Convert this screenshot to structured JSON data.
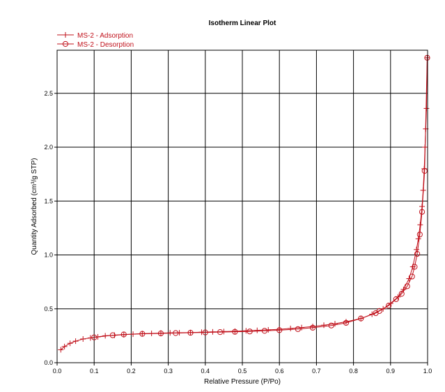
{
  "chart_data": {
    "type": "scatter",
    "title": "Isotherm Linear Plot",
    "xlabel": "Relative Pressure (P/Po)",
    "ylabel": "Quantity Adsorbed (cm³/g STP)",
    "xlim": [
      0.0,
      1.0
    ],
    "ylim": [
      0.0,
      2.9
    ],
    "x_ticks": [
      0.0,
      0.1,
      0.2,
      0.3,
      0.4,
      0.5,
      0.6,
      0.7,
      0.8,
      0.9,
      1.0
    ],
    "x_tick_labels": [
      "0.0",
      "0.1",
      "0.2",
      "0.3",
      "0.4",
      "0.5",
      "0.6",
      "0.7",
      "0.8",
      "0.9",
      "1.0"
    ],
    "y_ticks": [
      0.0,
      0.5,
      1.0,
      1.5,
      2.0,
      2.5
    ],
    "y_tick_labels": [
      "0.0",
      "0.5",
      "1.0",
      "1.5",
      "2.0",
      "2.5"
    ],
    "grid": true,
    "legend_position": "top-left",
    "colors": {
      "series": "#c0101a"
    },
    "series": [
      {
        "name": "MS-2 - Adsorption",
        "marker": "plus",
        "points": [
          [
            0.01,
            0.12
          ],
          [
            0.02,
            0.15
          ],
          [
            0.035,
            0.18
          ],
          [
            0.05,
            0.2
          ],
          [
            0.07,
            0.22
          ],
          [
            0.09,
            0.23
          ],
          [
            0.11,
            0.24
          ],
          [
            0.13,
            0.25
          ],
          [
            0.155,
            0.255
          ],
          [
            0.18,
            0.26
          ],
          [
            0.205,
            0.265
          ],
          [
            0.23,
            0.27
          ],
          [
            0.255,
            0.272
          ],
          [
            0.28,
            0.275
          ],
          [
            0.305,
            0.277
          ],
          [
            0.33,
            0.278
          ],
          [
            0.36,
            0.28
          ],
          [
            0.39,
            0.283
          ],
          [
            0.42,
            0.286
          ],
          [
            0.45,
            0.289
          ],
          [
            0.48,
            0.292
          ],
          [
            0.51,
            0.296
          ],
          [
            0.54,
            0.3
          ],
          [
            0.57,
            0.305
          ],
          [
            0.6,
            0.31
          ],
          [
            0.63,
            0.318
          ],
          [
            0.66,
            0.326
          ],
          [
            0.69,
            0.336
          ],
          [
            0.72,
            0.348
          ],
          [
            0.75,
            0.362
          ],
          [
            0.78,
            0.38
          ],
          [
            0.82,
            0.41
          ],
          [
            0.85,
            0.45
          ],
          [
            0.88,
            0.5
          ],
          [
            0.9,
            0.55
          ],
          [
            0.92,
            0.61
          ],
          [
            0.935,
            0.68
          ],
          [
            0.95,
            0.78
          ],
          [
            0.96,
            0.89
          ],
          [
            0.97,
            1.05
          ],
          [
            0.975,
            1.15
          ],
          [
            0.98,
            1.28
          ],
          [
            0.985,
            1.45
          ],
          [
            0.988,
            1.6
          ],
          [
            0.991,
            1.8
          ],
          [
            0.993,
            2.0
          ],
          [
            0.995,
            2.17
          ],
          [
            0.997,
            2.36
          ],
          [
            0.999,
            2.83
          ]
        ]
      },
      {
        "name": "MS-2 - Desorption",
        "marker": "circle",
        "points": [
          [
            0.999,
            2.83
          ],
          [
            0.992,
            1.78
          ],
          [
            0.985,
            1.4
          ],
          [
            0.979,
            1.19
          ],
          [
            0.972,
            1.01
          ],
          [
            0.965,
            0.89
          ],
          [
            0.958,
            0.8
          ],
          [
            0.945,
            0.71
          ],
          [
            0.93,
            0.64
          ],
          [
            0.915,
            0.59
          ],
          [
            0.895,
            0.53
          ],
          [
            0.87,
            0.48
          ],
          [
            0.86,
            0.46
          ],
          [
            0.82,
            0.41
          ],
          [
            0.78,
            0.37
          ],
          [
            0.74,
            0.345
          ],
          [
            0.69,
            0.325
          ],
          [
            0.65,
            0.312
          ],
          [
            0.6,
            0.302
          ],
          [
            0.56,
            0.296
          ],
          [
            0.52,
            0.29
          ],
          [
            0.48,
            0.287
          ],
          [
            0.44,
            0.284
          ],
          [
            0.4,
            0.281
          ],
          [
            0.36,
            0.278
          ],
          [
            0.32,
            0.275
          ],
          [
            0.28,
            0.272
          ],
          [
            0.23,
            0.268
          ],
          [
            0.18,
            0.262
          ],
          [
            0.15,
            0.255
          ],
          [
            0.1,
            0.235
          ]
        ]
      }
    ]
  }
}
